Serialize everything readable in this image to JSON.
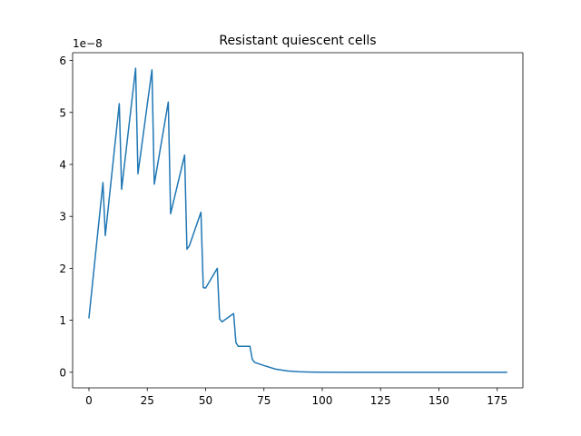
{
  "chart_data": {
    "type": "line",
    "title": "Resistant quiescent cells",
    "xlabel": "",
    "ylabel": "",
    "y_offset_label": "1e−8",
    "y_scale_factor": 1e-08,
    "xlim": [
      -7,
      186
    ],
    "ylim": [
      -0.3,
      6.15
    ],
    "x_ticks": [
      0,
      25,
      50,
      75,
      100,
      125,
      150,
      175
    ],
    "x_tick_labels": [
      "0",
      "25",
      "50",
      "75",
      "100",
      "125",
      "150",
      "175"
    ],
    "y_ticks": [
      0,
      1,
      2,
      3,
      4,
      5,
      6
    ],
    "y_tick_labels": [
      "0",
      "1",
      "2",
      "3",
      "4",
      "5",
      "6"
    ],
    "grid": false,
    "legend": "none",
    "series": [
      {
        "color": "#1f77b4",
        "x": [
          0,
          6,
          7,
          13,
          14,
          20,
          21,
          27,
          28,
          34,
          35,
          41,
          42,
          43,
          48,
          49,
          50,
          55,
          56,
          57,
          62,
          63,
          64,
          69,
          70,
          71,
          75,
          80,
          85,
          90,
          95,
          100,
          110,
          125,
          150,
          179
        ],
        "y": [
          1.05,
          3.65,
          2.63,
          5.17,
          3.52,
          5.85,
          3.82,
          5.82,
          3.62,
          5.2,
          3.05,
          4.18,
          2.37,
          2.43,
          3.08,
          1.63,
          1.62,
          2.0,
          1.03,
          0.97,
          1.13,
          0.57,
          0.5,
          0.5,
          0.25,
          0.19,
          0.13,
          0.06,
          0.025,
          0.01,
          0.004,
          0.001,
          0.0,
          0.0,
          0.0,
          0.0
        ]
      }
    ]
  }
}
